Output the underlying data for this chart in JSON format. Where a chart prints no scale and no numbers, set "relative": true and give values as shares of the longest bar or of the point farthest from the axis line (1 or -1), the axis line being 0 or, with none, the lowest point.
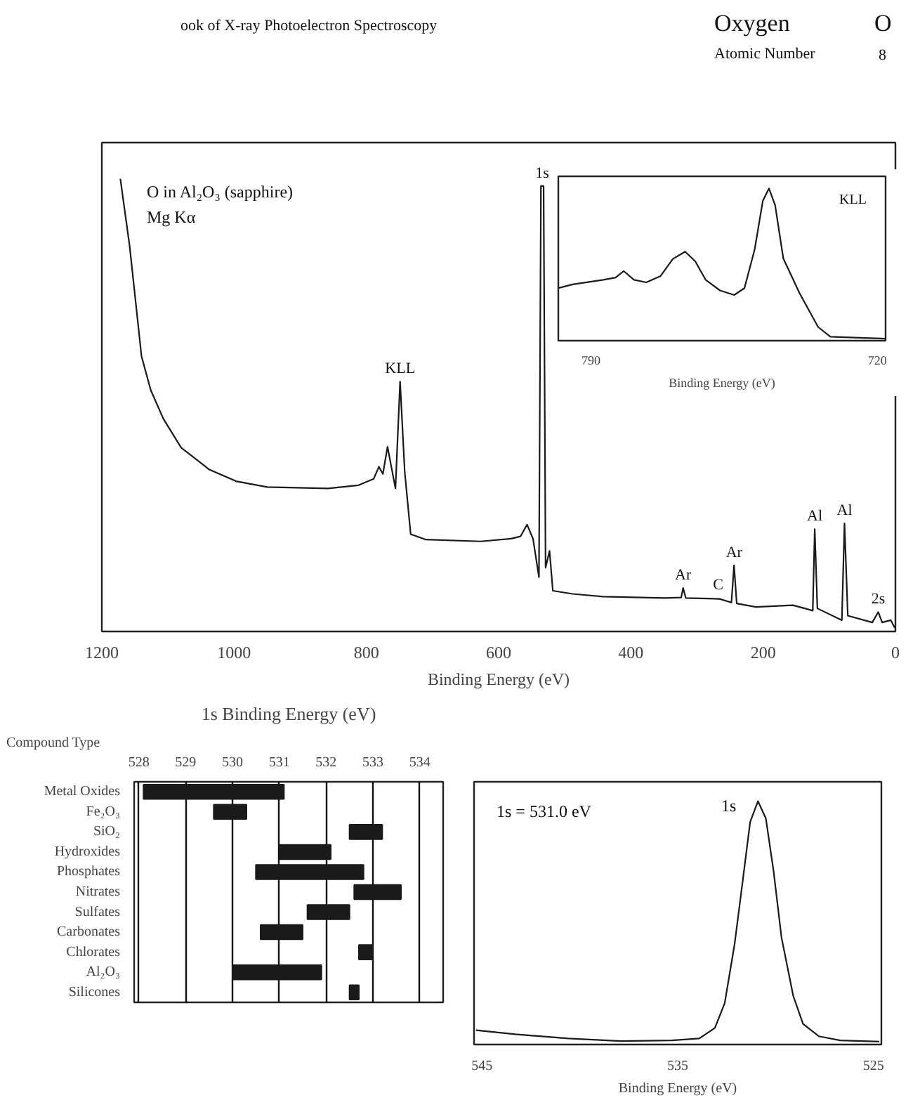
{
  "chart_data": [
    {
      "type": "line",
      "relative": true,
      "xlabel": "Binding Energy (eV)",
      "xlim": [
        1200,
        0
      ],
      "xticks": [
        1200,
        1000,
        800,
        600,
        400,
        200,
        0
      ],
      "annotations": [
        "ook of X-ray Photoelectron Spectroscopy",
        "Oxygen",
        "O",
        "Atomic Number",
        "8",
        "O in Al₂O₃ (sapphire)",
        "Mg Kα",
        {
          "text": "1s",
          "x": 534,
          "y": 0.984
        },
        {
          "text": "KLL",
          "x": 749,
          "y": 0.552
        },
        {
          "text": "Ar",
          "x": 321,
          "y": 0.096
        },
        {
          "text": "C",
          "x": 268,
          "y": 0.075
        },
        {
          "text": "Ar",
          "x": 244,
          "y": 0.146
        },
        {
          "text": "Al",
          "x": 122,
          "y": 0.226
        },
        {
          "text": "Al",
          "x": 77,
          "y": 0.239
        },
        {
          "text": "2s",
          "x": 26,
          "y": 0.043
        }
      ],
      "series": [
        {
          "color": "#1a1a1a",
          "x": [
            1172,
            1158,
            1140,
            1126,
            1107,
            1080,
            1043,
            1038,
            997,
            950,
            858,
            812,
            789,
            781,
            775,
            768,
            756,
            749,
            742,
            733,
            710,
            627,
            581,
            567,
            557,
            548,
            539,
            536,
            532,
            529,
            523,
            518,
            488,
            442,
            349,
            324,
            321,
            317,
            266,
            248,
            244,
            240,
            211,
            155,
            137,
            125,
            122,
            118,
            81,
            77,
            72,
            35,
            26,
            20,
            7,
            1
          ],
          "values": [
            1.0,
            0.852,
            0.608,
            0.533,
            0.47,
            0.406,
            0.364,
            0.358,
            0.332,
            0.319,
            0.316,
            0.323,
            0.337,
            0.364,
            0.348,
            0.408,
            0.316,
            0.552,
            0.353,
            0.215,
            0.203,
            0.199,
            0.205,
            0.21,
            0.236,
            0.205,
            0.12,
            0.984,
            0.984,
            0.141,
            0.178,
            0.09,
            0.083,
            0.077,
            0.074,
            0.075,
            0.096,
            0.074,
            0.072,
            0.064,
            0.146,
            0.062,
            0.054,
            0.058,
            0.051,
            0.046,
            0.226,
            0.051,
            0.025,
            0.239,
            0.035,
            0.02,
            0.043,
            0.02,
            0.025,
            0.008
          ]
        }
      ]
    },
    {
      "type": "line",
      "relative": true,
      "xlabel": "Binding Energy (eV)",
      "xlim": [
        798,
        718
      ],
      "xticks": [
        790,
        720
      ],
      "annotations": [
        "KLL"
      ],
      "series": [
        {
          "color": "#1a1a1a",
          "x": [
            798,
            794.5,
            787,
            784,
            782,
            779.5,
            776.5,
            773,
            770,
            767,
            764.5,
            762,
            758.5,
            755,
            752.5,
            750,
            748,
            746.5,
            745,
            743,
            739,
            734.5,
            731.5,
            725.5,
            718
          ],
          "values": [
            0.345,
            0.37,
            0.4,
            0.415,
            0.457,
            0.4,
            0.383,
            0.425,
            0.537,
            0.585,
            0.52,
            0.4,
            0.33,
            0.3,
            0.345,
            0.6,
            0.92,
            1.0,
            0.89,
            0.54,
            0.31,
            0.09,
            0.026,
            0.02,
            0.013
          ]
        }
      ]
    },
    {
      "type": "bar",
      "orientation": "horizontal",
      "title": "1s Binding Energy (eV)",
      "ylabel": "Compound Type",
      "grid": "x",
      "xlim": [
        527.9,
        534.5
      ],
      "xticks": [
        528,
        529,
        530,
        531,
        532,
        533,
        534
      ],
      "categories": [
        "Metal Oxides",
        "Fe₂O₃",
        "SiO₂",
        "Hydroxides",
        "Phosphates",
        "Nitrates",
        "Sulfates",
        "Carbonates",
        "Chlorates",
        "Al₂O₃",
        "Silicones"
      ],
      "base": [
        528.1,
        529.6,
        532.5,
        531.0,
        530.5,
        532.6,
        531.6,
        530.6,
        532.7,
        530.0,
        532.5
      ],
      "values": [
        3.0,
        0.7,
        0.7,
        1.1,
        2.3,
        1.0,
        0.9,
        0.9,
        0.3,
        1.9,
        0.2
      ],
      "color": "#1a1a1a"
    },
    {
      "type": "line",
      "relative": true,
      "xlabel": "Binding Energy (eV)",
      "xlim": [
        545.4,
        524.6
      ],
      "xticks": [
        545,
        535,
        525
      ],
      "annotations": [
        "1s = 531.0 eV",
        "1s"
      ],
      "series": [
        {
          "color": "#1a1a1a",
          "x": [
            545.3,
            543.3,
            540.6,
            537.9,
            535.3,
            533.9,
            533.1,
            532.6,
            532.1,
            531.7,
            531.3,
            530.9,
            530.5,
            530.1,
            529.7,
            529.1,
            528.6,
            527.8,
            526.7,
            524.7
          ],
          "values": [
            0.059,
            0.042,
            0.025,
            0.014,
            0.017,
            0.025,
            0.068,
            0.17,
            0.41,
            0.66,
            0.915,
            1.0,
            0.93,
            0.71,
            0.44,
            0.2,
            0.085,
            0.034,
            0.017,
            0.012
          ]
        }
      ]
    }
  ]
}
